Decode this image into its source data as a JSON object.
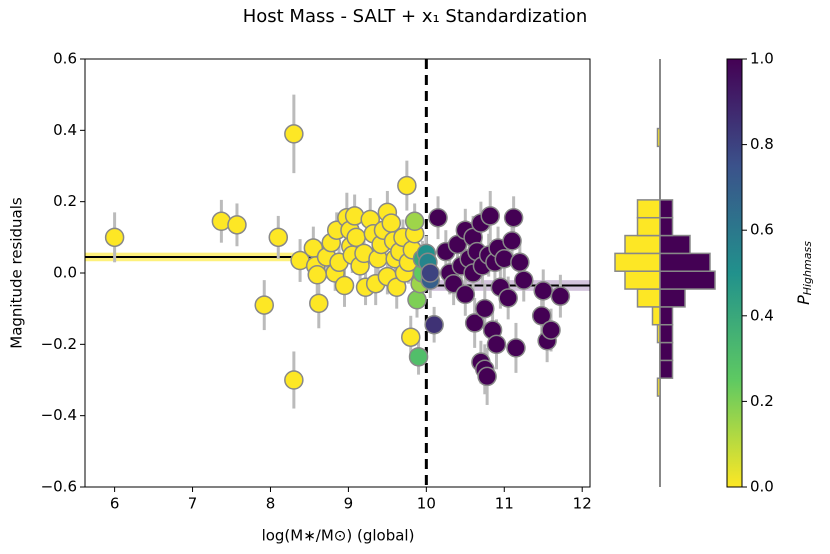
{
  "chart_data": [
    {
      "type": "scatter",
      "title": "Host Mass - SALT + x₁ Standardization",
      "x_label": "log(M∗/M⊙) (global)",
      "y_label": "Magnitude residuals",
      "xlim": [
        5.62,
        12.1
      ],
      "ylim": [
        -0.6,
        0.6
      ],
      "xticks": [
        6,
        7,
        8,
        9,
        10,
        11,
        12
      ],
      "yticks": [
        {
          "value": -0.6,
          "label": "−0.6"
        },
        {
          "value": -0.4,
          "label": "−0.4"
        },
        {
          "value": -0.2,
          "label": "−0.2"
        },
        {
          "value": 0,
          "label": "0.0"
        },
        {
          "value": 0.2,
          "label": "0.2"
        },
        {
          "value": 0.4,
          "label": "0.4"
        },
        {
          "value": 0.6,
          "label": "0.6"
        }
      ],
      "split": 10,
      "steps": [
        {
          "value": 0.045,
          "error": 0.012,
          "color": "#fde725",
          "side": "low"
        },
        {
          "value": -0.035,
          "error": 0.015,
          "color": "#b49bc4",
          "side": "high"
        }
      ],
      "x": [
        6.0,
        7.37,
        7.57,
        8.1,
        7.92,
        8.3,
        8.3,
        8.38,
        8.55,
        8.58,
        8.6,
        8.62,
        8.72,
        8.78,
        8.85,
        8.83,
        8.88,
        8.95,
        8.98,
        9.02,
        9.03,
        9.05,
        9.08,
        9.1,
        9.15,
        9.2,
        9.22,
        9.28,
        9.32,
        9.35,
        9.38,
        9.42,
        9.45,
        9.5,
        9.5,
        9.55,
        9.58,
        9.6,
        9.62,
        9.66,
        9.7,
        9.72,
        9.75,
        9.77,
        9.8,
        9.82,
        9.85,
        9.85,
        9.88,
        9.92,
        9.9,
        9.95,
        9.95,
        10.0,
        10.02,
        10.05,
        10.1,
        10.05,
        10.15,
        10.25,
        10.3,
        10.35,
        10.4,
        10.45,
        10.5,
        10.5,
        10.55,
        10.6,
        10.6,
        10.62,
        10.65,
        10.7,
        10.7,
        10.72,
        10.75,
        10.75,
        10.78,
        10.8,
        10.82,
        10.85,
        10.88,
        10.9,
        10.92,
        10.95,
        11.0,
        11.05,
        11.1,
        11.12,
        11.15,
        11.2,
        11.25,
        11.5,
        11.48,
        11.55,
        11.72,
        11.6
      ],
      "values": [
        0.1,
        0.145,
        0.135,
        0.1,
        -0.09,
        0.39,
        -0.3,
        0.035,
        0.07,
        0.02,
        -0.005,
        -0.085,
        0.045,
        0.085,
        0.12,
        0.0,
        0.03,
        -0.035,
        0.155,
        0.12,
        0.075,
        0.05,
        0.16,
        0.1,
        0.02,
        0.055,
        -0.04,
        0.15,
        0.11,
        -0.03,
        0.04,
        0.08,
        0.12,
        0.17,
        -0.01,
        0.14,
        0.09,
        0.04,
        -0.04,
        0.06,
        0.1,
        0.0,
        0.245,
        0.03,
        -0.18,
        0.065,
        0.11,
        0.145,
        -0.075,
        -0.03,
        -0.235,
        0.0,
        0.04,
        0.055,
        0.03,
        -0.02,
        -0.145,
        0.0,
        0.155,
        0.06,
        0.0,
        -0.03,
        0.08,
        0.02,
        0.12,
        -0.06,
        0.04,
        0.1,
        0.0,
        -0.14,
        0.06,
        0.14,
        -0.25,
        0.02,
        -0.1,
        -0.27,
        -0.29,
        0.05,
        0.16,
        -0.16,
        0.03,
        -0.2,
        0.07,
        -0.04,
        0.04,
        -0.07,
        0.09,
        0.155,
        -0.21,
        0.03,
        -0.02,
        -0.05,
        -0.12,
        -0.19,
        -0.065,
        -0.16
      ],
      "errors": [
        0.07,
        0.06,
        0.06,
        0.06,
        0.07,
        0.11,
        0.08,
        0.06,
        0.06,
        0.05,
        0.06,
        0.07,
        0.06,
        0.05,
        0.05,
        0.05,
        0.06,
        0.06,
        0.07,
        0.06,
        0.05,
        0.05,
        0.06,
        0.06,
        0.06,
        0.05,
        0.05,
        0.06,
        0.06,
        0.06,
        0.06,
        0.05,
        0.07,
        0.06,
        0.05,
        0.05,
        0.05,
        0.06,
        0.06,
        0.05,
        0.05,
        0.05,
        0.07,
        0.06,
        0.06,
        0.05,
        0.05,
        0.05,
        0.05,
        0.05,
        0.05,
        0.05,
        0.05,
        0.05,
        0.05,
        0.05,
        0.05,
        0.05,
        0.06,
        0.06,
        0.06,
        0.06,
        0.05,
        0.06,
        0.06,
        0.06,
        0.06,
        0.06,
        0.05,
        0.07,
        0.06,
        0.06,
        0.06,
        0.05,
        0.07,
        0.07,
        0.08,
        0.06,
        0.07,
        0.06,
        0.06,
        0.07,
        0.06,
        0.06,
        0.06,
        0.06,
        0.06,
        0.06,
        0.07,
        0.06,
        0.06,
        0.06,
        0.07,
        0.06,
        0.06,
        0.06
      ],
      "p": [
        0,
        0,
        0,
        0,
        0,
        0,
        0,
        0,
        0,
        0,
        0,
        0,
        0,
        0,
        0,
        0,
        0,
        0,
        0,
        0,
        0,
        0,
        0,
        0,
        0,
        0,
        0,
        0,
        0,
        0,
        0,
        0,
        0,
        0,
        0,
        0,
        0,
        0,
        0,
        0,
        0,
        0,
        0,
        0,
        0,
        0,
        0,
        0.15,
        0.2,
        0.15,
        0.3,
        0.25,
        0.4,
        0.5,
        0.55,
        0.7,
        0.85,
        0.8,
        1,
        1,
        1,
        1,
        1,
        1,
        1,
        1,
        1,
        1,
        1,
        1,
        1,
        1,
        1,
        1,
        1,
        1,
        1,
        1,
        1,
        1,
        1,
        1,
        1,
        1,
        1,
        1,
        1,
        1,
        1,
        1,
        1,
        1,
        1,
        1,
        1,
        1
      ],
      "colorbar": {
        "label": "P",
        "label_subscript": "Highmass",
        "lim": [
          0,
          1
        ],
        "ticks": [
          {
            "value": 0,
            "label": "0.0"
          },
          {
            "value": 0.2,
            "label": "0.2"
          },
          {
            "value": 0.4,
            "label": "0.4"
          },
          {
            "value": 0.6,
            "label": "0.6"
          },
          {
            "value": 0.8,
            "label": "0.8"
          },
          {
            "value": 1,
            "label": "1.0"
          }
        ]
      }
    },
    {
      "type": "histogram",
      "orientation": "horizontal",
      "xlim": [
        -24,
        24
      ],
      "bins": [
        -0.345,
        -0.295,
        -0.245,
        -0.195,
        -0.145,
        -0.095,
        -0.045,
        0.005,
        0.055,
        0.105,
        0.155,
        0.205,
        0.255,
        0.305,
        0.355,
        0.405
      ],
      "series": [
        {
          "color": "#fde725",
          "side": "left",
          "values": [
            1,
            0,
            0,
            1,
            3,
            9,
            14,
            18,
            14,
            9,
            9,
            0,
            0,
            0,
            1
          ]
        },
        {
          "color": "#440154",
          "side": "right",
          "values": [
            0,
            5,
            5,
            5,
            5,
            10,
            22,
            20,
            12,
            5,
            5,
            0,
            0,
            0,
            0
          ]
        }
      ]
    }
  ]
}
